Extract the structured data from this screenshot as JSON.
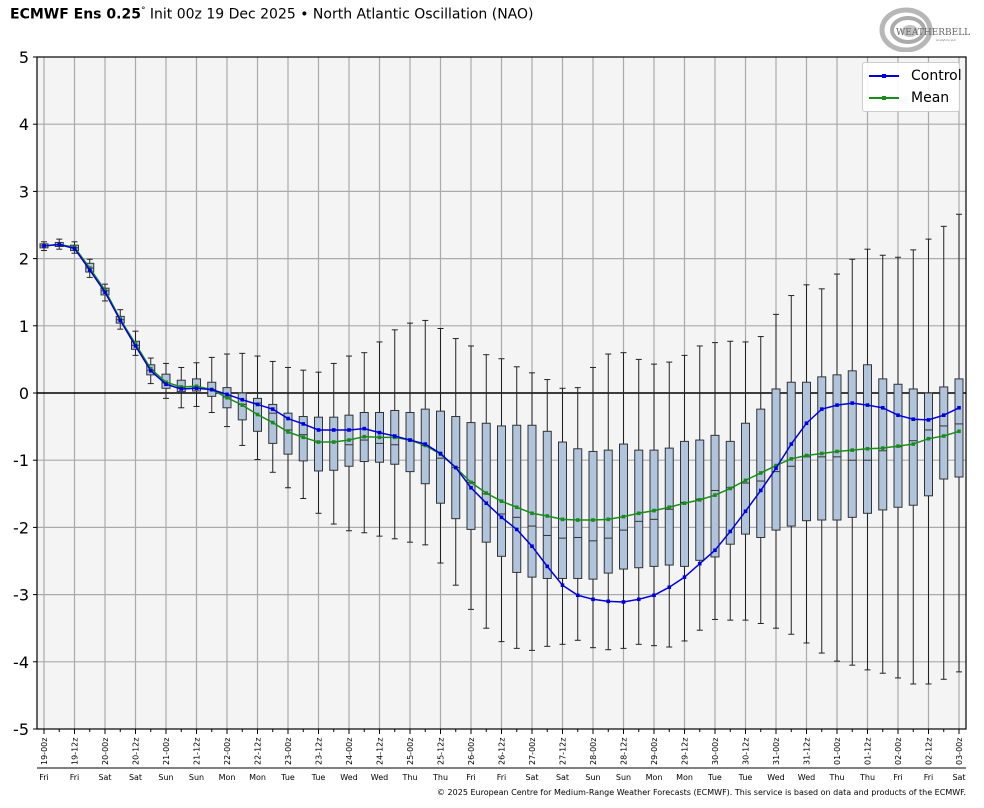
{
  "title": {
    "model": "ECMWF Ens 0.25",
    "degree": "°",
    "rest": " Init 00z 19 Dec 2025 • North Atlantic Oscillation (NAO)"
  },
  "logo": {
    "text": "WeatherBELL",
    "subtext": "Analytics LLC"
  },
  "footer": "© 2025 European Centre for Medium-Range Weather Forecasts (ECMWF). This service is based on data and products of the ECMWF.",
  "colors": {
    "control": "#0000dd",
    "mean": "#1a8c1a",
    "box_fill": "#b0c4de",
    "box_stroke": "#333333",
    "grid": "#aaaaaa",
    "plot_bg": "#f4f4f4"
  },
  "chart_data": {
    "type": "box",
    "title": "ECMWF Ens 0.25° Init 00z 19 Dec 2025 • North Atlantic Oscillation (NAO)",
    "step_hours": 6,
    "ylim": [
      -5,
      5
    ],
    "yticks": [
      "5",
      "4",
      "3",
      "2",
      "1",
      "0",
      "-1",
      "-2",
      "-3",
      "-4",
      "-5"
    ],
    "grid": true,
    "legend_position": "top-right",
    "legend": [
      "Control",
      "Mean"
    ],
    "x_labels": [
      "19-00z",
      "19-12z",
      "20-00z",
      "20-12z",
      "21-00z",
      "21-12z",
      "22-00z",
      "22-12z",
      "23-00z",
      "23-12z",
      "24-00z",
      "24-12z",
      "25-00z",
      "25-12z",
      "26-00z",
      "26-12z",
      "27-00z",
      "27-12z",
      "28-00z",
      "28-12z",
      "29-00z",
      "29-12z",
      "30-00z",
      "30-12z",
      "31-00z",
      "31-12z",
      "01-00z",
      "01-12z",
      "02-00z",
      "02-12z",
      "03-00z"
    ],
    "day_labels": [
      "Fri",
      "Fri",
      "Sat",
      "Sat",
      "Sun",
      "Sun",
      "Mon",
      "Mon",
      "Tue",
      "Tue",
      "Wed",
      "Wed",
      "Thu",
      "Thu",
      "Fri",
      "Fri",
      "Sat",
      "Sat",
      "Sun",
      "Sun",
      "Mon",
      "Mon",
      "Tue",
      "Tue",
      "Wed",
      "Wed",
      "Thu",
      "Thu",
      "Fri",
      "Fri",
      "Sat"
    ],
    "series": [
      {
        "name": "Control",
        "values": [
          2.19,
          2.21,
          2.15,
          1.83,
          1.5,
          1.08,
          0.7,
          0.33,
          0.13,
          0.06,
          0.07,
          0.05,
          -0.02,
          -0.1,
          -0.17,
          -0.24,
          -0.38,
          -0.46,
          -0.55,
          -0.55,
          -0.55,
          -0.53,
          -0.59,
          -0.64,
          -0.7,
          -0.76,
          -0.9,
          -1.11,
          -1.41,
          -1.64,
          -1.85,
          -2.03,
          -2.28,
          -2.58,
          -2.86,
          -3.01,
          -3.07,
          -3.1,
          -3.11,
          -3.07,
          -3.01,
          -2.89,
          -2.74,
          -2.54,
          -2.34,
          -2.06,
          -1.76,
          -1.45,
          -1.12,
          -0.76,
          -0.45,
          -0.24,
          -0.18,
          -0.15,
          -0.18,
          -0.22,
          -0.33,
          -0.39,
          -0.4,
          -0.33,
          -0.22
        ]
      },
      {
        "name": "Mean",
        "values": [
          2.19,
          2.21,
          2.17,
          1.86,
          1.53,
          1.1,
          0.73,
          0.36,
          0.16,
          0.09,
          0.1,
          0.05,
          -0.07,
          -0.18,
          -0.32,
          -0.44,
          -0.58,
          -0.66,
          -0.73,
          -0.73,
          -0.7,
          -0.65,
          -0.66,
          -0.66,
          -0.7,
          -0.78,
          -0.91,
          -1.11,
          -1.33,
          -1.49,
          -1.61,
          -1.7,
          -1.79,
          -1.83,
          -1.88,
          -1.89,
          -1.89,
          -1.88,
          -1.84,
          -1.79,
          -1.75,
          -1.7,
          -1.64,
          -1.59,
          -1.52,
          -1.42,
          -1.3,
          -1.19,
          -1.08,
          -0.98,
          -0.93,
          -0.9,
          -0.87,
          -0.85,
          -0.83,
          -0.82,
          -0.79,
          -0.76,
          -0.68,
          -0.64,
          -0.57
        ]
      }
    ],
    "boxes": {
      "q3": [
        2.22,
        2.24,
        2.2,
        1.93,
        1.56,
        1.14,
        0.77,
        0.42,
        0.28,
        0.19,
        0.21,
        0.16,
        0.08,
        0,
        -0.08,
        -0.17,
        -0.3,
        -0.35,
        -0.36,
        -0.36,
        -0.33,
        -0.29,
        -0.29,
        -0.26,
        -0.29,
        -0.24,
        -0.27,
        -0.35,
        -0.44,
        -0.45,
        -0.49,
        -0.48,
        -0.48,
        -0.57,
        -0.73,
        -0.83,
        -0.87,
        -0.85,
        -0.76,
        -0.85,
        -0.85,
        -0.82,
        -0.72,
        -0.7,
        -0.63,
        -0.72,
        -0.45,
        -0.24,
        0.06,
        0.16,
        0.16,
        0.24,
        0.27,
        0.33,
        0.42,
        0.21,
        0.13,
        0.06,
        0,
        0.09,
        0.21
      ],
      "median": [
        2.19,
        2.21,
        2.16,
        1.86,
        1.52,
        1.09,
        0.71,
        0.34,
        0.15,
        0.08,
        0.09,
        0.05,
        -0.06,
        -0.17,
        -0.15,
        -0.3,
        -0.55,
        -0.62,
        -0.73,
        -0.73,
        -0.77,
        -0.7,
        -0.75,
        -0.77,
        -0.7,
        -0.78,
        -0.97,
        -1.11,
        -1.33,
        -1.5,
        -1.8,
        -1.85,
        -1.98,
        -2.12,
        -2.16,
        -2.15,
        -2.2,
        -2.16,
        -2.04,
        -1.91,
        -1.88,
        -1.73,
        -1.63,
        -1.58,
        -1.45,
        -1.41,
        -1.34,
        -1.31,
        -1.17,
        -1.09,
        -0.95,
        -0.95,
        -0.95,
        -1.0,
        -1.0,
        -0.86,
        -0.8,
        -0.71,
        -0.55,
        -0.49,
        -0.46
      ],
      "q1": [
        2.16,
        2.18,
        2.12,
        1.8,
        1.46,
        1.04,
        0.65,
        0.27,
        0.07,
        0.02,
        0.03,
        -0.05,
        -0.22,
        -0.4,
        -0.57,
        -0.75,
        -0.91,
        -1.01,
        -1.16,
        -1.15,
        -1.09,
        -1.02,
        -1.03,
        -1.06,
        -1.17,
        -1.35,
        -1.64,
        -1.87,
        -2.03,
        -2.22,
        -2.43,
        -2.67,
        -2.74,
        -2.76,
        -2.76,
        -2.76,
        -2.77,
        -2.68,
        -2.62,
        -2.6,
        -2.58,
        -2.56,
        -2.58,
        -2.49,
        -2.44,
        -2.25,
        -2.1,
        -2.15,
        -2.04,
        -1.98,
        -1.9,
        -1.89,
        -1.89,
        -1.85,
        -1.79,
        -1.74,
        -1.7,
        -1.67,
        -1.53,
        -1.28,
        -1.25
      ],
      "max": [
        2.25,
        2.29,
        2.25,
        1.99,
        1.62,
        1.24,
        0.92,
        0.52,
        0.44,
        0.38,
        0.45,
        0.53,
        0.58,
        0.59,
        0.55,
        0.47,
        0.38,
        0.34,
        0.31,
        0.44,
        0.55,
        0.6,
        0.76,
        0.94,
        1.04,
        1.08,
        0.96,
        0.81,
        0.7,
        0.57,
        0.51,
        0.39,
        0.3,
        0.2,
        0.07,
        0.08,
        0.38,
        0.58,
        0.6,
        0.5,
        0.43,
        0.46,
        0.56,
        0.7,
        0.75,
        0.77,
        0.76,
        0.84,
        1.17,
        1.45,
        1.61,
        1.55,
        1.77,
        1.99,
        2.14,
        2.05,
        2.02,
        2.13,
        2.29,
        2.48,
        2.66
      ],
      "min": [
        2.12,
        2.14,
        2.08,
        1.72,
        1.37,
        0.95,
        0.56,
        0.14,
        -0.08,
        -0.22,
        -0.2,
        -0.29,
        -0.5,
        -0.78,
        -0.99,
        -1.18,
        -1.41,
        -1.57,
        -1.79,
        -1.95,
        -2.05,
        -2.08,
        -2.13,
        -2.17,
        -2.22,
        -2.26,
        -2.53,
        -2.86,
        -3.22,
        -3.5,
        -3.7,
        -3.8,
        -3.83,
        -3.77,
        -3.74,
        -3.68,
        -3.79,
        -3.82,
        -3.8,
        -3.74,
        -3.76,
        -3.78,
        -3.69,
        -3.53,
        -3.37,
        -3.38,
        -3.38,
        -3.43,
        -3.5,
        -3.59,
        -3.72,
        -3.87,
        -3.99,
        -4.05,
        -4.12,
        -4.17,
        -4.24,
        -4.33,
        -4.33,
        -4.26,
        -4.15
      ]
    }
  }
}
